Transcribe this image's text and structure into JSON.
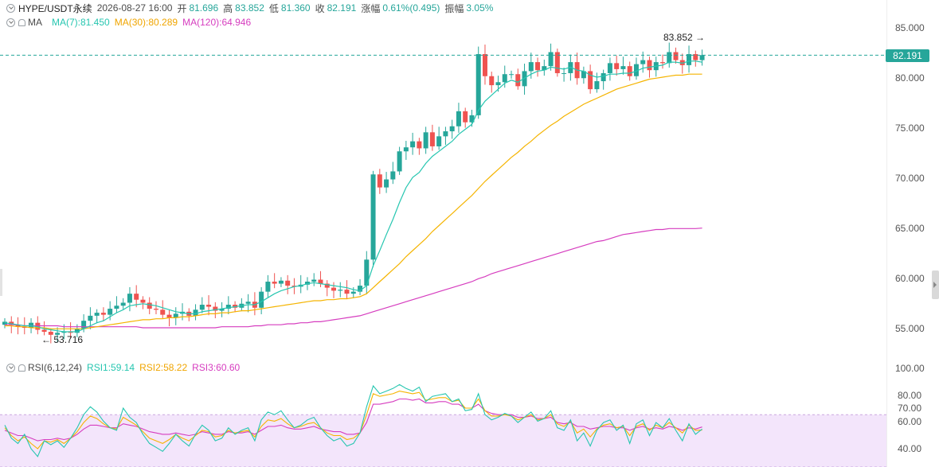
{
  "header": {
    "symbol": "HYPE/USDT永续",
    "datetime": "2026-08-27 16:00",
    "open_label": "开",
    "open": "81.696",
    "high_label": "高",
    "high": "83.852",
    "low_label": "低",
    "low": "81.360",
    "close_label": "收",
    "close": "82.191",
    "change_label": "涨幅",
    "change": "0.61%(0.495)",
    "amp_label": "振幅",
    "amp": "3.05%"
  },
  "ma": {
    "label": "MA",
    "ma7": "MA(7):81.450",
    "ma30": "MA(30):80.289",
    "ma120": "MA(120):64.946"
  },
  "rsi": {
    "label": "RSI(6,12,24)",
    "rsi1": "RSI1:59.14",
    "rsi2": "RSI2:58.22",
    "rsi3": "RSI3:60.60"
  },
  "price_axis": [
    "85.000",
    "80.000",
    "75.000",
    "70.000",
    "65.000",
    "60.000",
    "55.000"
  ],
  "rsi_axis": [
    "100.00",
    "80.00",
    "70.00",
    "60.00",
    "40.00"
  ],
  "current_price": "82.191",
  "high_marker": "83.852",
  "low_marker": "53.716",
  "colors": {
    "up": "#26a69a",
    "down": "#ef5350",
    "ma7": "#26c6b0",
    "ma30": "#f5b400",
    "ma120": "#d63dbf",
    "rsi_band": "#f3e5fb"
  },
  "chart_data": {
    "type": "candlestick",
    "ylim": [
      51.0,
      86.5
    ],
    "rsi_ylim": [
      30,
      106
    ],
    "close": [
      55.6,
      55.3,
      55.1,
      55.0,
      55.5,
      54.8,
      54.6,
      54.3,
      54.5,
      54.6,
      54.5,
      54.9,
      55.7,
      56.2,
      56.5,
      56.3,
      56.9,
      57.2,
      57.5,
      58.4,
      57.8,
      57.5,
      56.9,
      56.8,
      56.3,
      56.0,
      56.4,
      56.6,
      56.2,
      56.8,
      57.3,
      57.1,
      56.7,
      56.9,
      57.3,
      57.0,
      57.4,
      57.6,
      57.0,
      58.6,
      59.6,
      59.4,
      59.7,
      59.2,
      59.1,
      59.3,
      59.6,
      59.8,
      59.4,
      59.0,
      58.7,
      58.8,
      58.4,
      58.6,
      59.2,
      61.8,
      70.3,
      69.0,
      69.8,
      70.6,
      72.6,
      73.0,
      73.6,
      72.9,
      74.5,
      73.1,
      74.1,
      74.6,
      75.1,
      76.6,
      75.5,
      76.2,
      82.3,
      80.1,
      79.2,
      79.5,
      80.3,
      80.3,
      79.1,
      80.6,
      81.5,
      80.7,
      81.1,
      82.5,
      80.4,
      80.4,
      81.5,
      79.9,
      80.6,
      78.8,
      79.6,
      80.4,
      81.4,
      80.8,
      81.1,
      80.1,
      81.3,
      81.7,
      80.7,
      81.5,
      81.4,
      82.5,
      81.7,
      81.2,
      82.3,
      81.7,
      82.2
    ],
    "ma7": [
      55.5,
      55.4,
      55.3,
      55.2,
      55.2,
      55.1,
      54.9,
      54.8,
      54.7,
      54.6,
      54.6,
      54.6,
      54.9,
      55.2,
      55.5,
      55.7,
      56.1,
      56.5,
      56.8,
      57.2,
      57.3,
      57.4,
      57.3,
      57.2,
      57.0,
      56.8,
      56.6,
      56.5,
      56.4,
      56.4,
      56.6,
      56.7,
      56.8,
      56.9,
      57.0,
      57.1,
      57.2,
      57.3,
      57.3,
      57.6,
      58.0,
      58.4,
      58.7,
      58.9,
      59.1,
      59.2,
      59.4,
      59.5,
      59.4,
      59.3,
      59.2,
      59.1,
      59.0,
      58.8,
      58.7,
      59.2,
      61.2,
      62.7,
      64.3,
      65.8,
      67.5,
      69.0,
      70.0,
      70.5,
      71.4,
      72.1,
      72.6,
      73.1,
      73.6,
      74.3,
      74.8,
      75.3,
      76.7,
      77.6,
      78.2,
      78.8,
      79.4,
      79.7,
      79.5,
      79.9,
      80.3,
      80.6,
      80.7,
      81.0,
      80.9,
      80.8,
      81.0,
      80.7,
      80.6,
      80.2,
      80.0,
      80.1,
      80.3,
      80.3,
      80.4,
      80.4,
      80.6,
      80.9,
      81.0,
      81.1,
      81.2,
      81.5,
      81.5,
      81.4,
      81.6,
      81.6,
      81.5
    ],
    "ma30": [
      55.2,
      55.2,
      55.1,
      55.1,
      55.0,
      55.0,
      55.0,
      54.9,
      54.9,
      54.9,
      54.9,
      54.9,
      54.9,
      55.0,
      55.1,
      55.2,
      55.3,
      55.4,
      55.5,
      55.6,
      55.7,
      55.8,
      55.8,
      55.9,
      55.9,
      56.0,
      56.0,
      56.1,
      56.1,
      56.2,
      56.3,
      56.4,
      56.4,
      56.5,
      56.5,
      56.6,
      56.7,
      56.7,
      56.8,
      56.9,
      57.0,
      57.1,
      57.2,
      57.3,
      57.4,
      57.5,
      57.6,
      57.7,
      57.7,
      57.8,
      57.8,
      57.9,
      57.9,
      58.0,
      58.1,
      58.4,
      59.0,
      59.6,
      60.2,
      60.8,
      61.4,
      62.1,
      62.7,
      63.3,
      63.9,
      64.6,
      65.2,
      65.8,
      66.4,
      67.0,
      67.6,
      68.2,
      68.9,
      69.6,
      70.2,
      70.8,
      71.4,
      72.0,
      72.5,
      73.1,
      73.6,
      74.2,
      74.7,
      75.2,
      75.6,
      76.1,
      76.5,
      76.9,
      77.3,
      77.6,
      77.9,
      78.2,
      78.5,
      78.8,
      79.0,
      79.2,
      79.4,
      79.6,
      79.8,
      79.9,
      80.0,
      80.1,
      80.2,
      80.2,
      80.3,
      80.3,
      80.3
    ],
    "ma120": [
      55.3,
      55.3,
      55.3,
      55.2,
      55.2,
      55.2,
      55.2,
      55.2,
      55.2,
      55.1,
      55.1,
      55.1,
      55.1,
      55.1,
      55.1,
      55.1,
      55.1,
      55.1,
      55.1,
      55.1,
      55.1,
      55.0,
      55.0,
      55.0,
      55.0,
      55.0,
      55.0,
      55.0,
      55.0,
      55.0,
      55.0,
      55.0,
      55.0,
      55.1,
      55.1,
      55.1,
      55.1,
      55.1,
      55.2,
      55.2,
      55.3,
      55.3,
      55.3,
      55.4,
      55.4,
      55.5,
      55.5,
      55.6,
      55.6,
      55.7,
      55.8,
      55.9,
      56.0,
      56.1,
      56.2,
      56.4,
      56.6,
      56.8,
      57.0,
      57.2,
      57.4,
      57.6,
      57.8,
      58.0,
      58.2,
      58.4,
      58.6,
      58.8,
      59.0,
      59.2,
      59.4,
      59.6,
      59.9,
      60.1,
      60.4,
      60.6,
      60.8,
      61.0,
      61.2,
      61.4,
      61.6,
      61.8,
      62.0,
      62.2,
      62.4,
      62.6,
      62.8,
      63.0,
      63.2,
      63.4,
      63.6,
      63.7,
      63.9,
      64.1,
      64.3,
      64.4,
      64.5,
      64.6,
      64.7,
      64.8,
      64.8,
      64.9,
      64.9,
      64.9,
      64.9,
      64.9,
      64.946
    ],
    "rsi1": [
      62,
      52,
      48,
      55,
      44,
      38,
      50,
      47,
      50,
      45,
      52,
      60,
      70,
      76,
      72,
      65,
      60,
      58,
      75,
      68,
      64,
      55,
      48,
      45,
      42,
      48,
      55,
      50,
      46,
      55,
      62,
      58,
      50,
      52,
      60,
      55,
      58,
      60,
      50,
      66,
      72,
      70,
      73,
      66,
      60,
      62,
      66,
      68,
      60,
      54,
      50,
      52,
      46,
      48,
      56,
      76,
      92,
      86,
      88,
      90,
      93,
      90,
      88,
      91,
      80,
      84,
      85,
      86,
      80,
      82,
      73,
      74,
      86,
      70,
      66,
      68,
      71,
      69,
      64,
      68,
      72,
      65,
      67,
      73,
      60,
      58,
      66,
      50,
      56,
      46,
      58,
      64,
      66,
      58,
      62,
      48,
      63,
      66,
      54,
      64,
      60,
      67,
      58,
      50,
      63,
      55,
      59
    ],
    "rsi2": [
      60,
      54,
      50,
      53,
      48,
      44,
      50,
      49,
      51,
      48,
      52,
      57,
      64,
      69,
      67,
      63,
      60,
      59,
      68,
      65,
      62,
      57,
      52,
      50,
      48,
      51,
      55,
      52,
      50,
      54,
      58,
      57,
      53,
      54,
      58,
      56,
      57,
      58,
      53,
      61,
      66,
      65,
      67,
      63,
      60,
      61,
      63,
      64,
      60,
      56,
      54,
      54,
      51,
      52,
      56,
      70,
      86,
      84,
      85,
      86,
      88,
      87,
      86,
      87,
      81,
      82,
      83,
      83,
      80,
      81,
      75,
      75,
      82,
      73,
      69,
      69,
      70,
      69,
      66,
      68,
      70,
      66,
      67,
      70,
      63,
      61,
      65,
      56,
      59,
      53,
      59,
      62,
      63,
      60,
      61,
      54,
      61,
      63,
      58,
      62,
      60,
      64,
      60,
      56,
      62,
      58,
      58.22
    ],
    "rsi3": [
      58,
      56,
      54,
      54,
      52,
      50,
      51,
      51,
      52,
      51,
      52,
      55,
      59,
      62,
      62,
      61,
      60,
      60,
      63,
      62,
      61,
      59,
      57,
      56,
      55,
      55,
      56,
      55,
      54,
      55,
      57,
      56,
      55,
      55,
      57,
      56,
      56,
      57,
      55,
      58,
      61,
      61,
      62,
      60,
      59,
      59,
      60,
      61,
      59,
      58,
      57,
      57,
      55,
      55,
      56,
      64,
      78,
      78,
      79,
      80,
      82,
      82,
      81,
      82,
      79,
      79,
      80,
      80,
      78,
      78,
      75,
      75,
      78,
      73,
      71,
      70,
      70,
      70,
      68,
      68,
      69,
      67,
      67,
      68,
      64,
      63,
      64,
      61,
      61,
      59,
      60,
      61,
      61,
      60,
      60,
      58,
      60,
      61,
      59,
      60,
      59,
      61,
      60,
      58,
      60,
      59,
      60.6
    ]
  }
}
